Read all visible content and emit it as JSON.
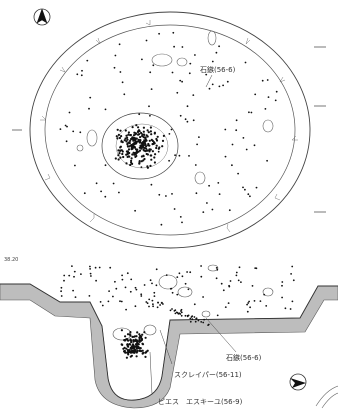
{
  "plan": {
    "label_stone_tool": "石鏃(56-6)"
  },
  "section": {
    "scale_label": "38.20",
    "label_stone_tool": "石鏃(56-6)",
    "label_scraper": "スクレイパー(56-11)",
    "label_piece_esquillee": "ピエス　エスキーユ(56-9)"
  },
  "icons": {
    "north_arrow": "north-arrow-icon",
    "direction_arrow": "direction-arrow-icon"
  },
  "colors": {
    "line": "#444444",
    "dots": "#111111",
    "soil_fill": "#bdbdbd"
  }
}
